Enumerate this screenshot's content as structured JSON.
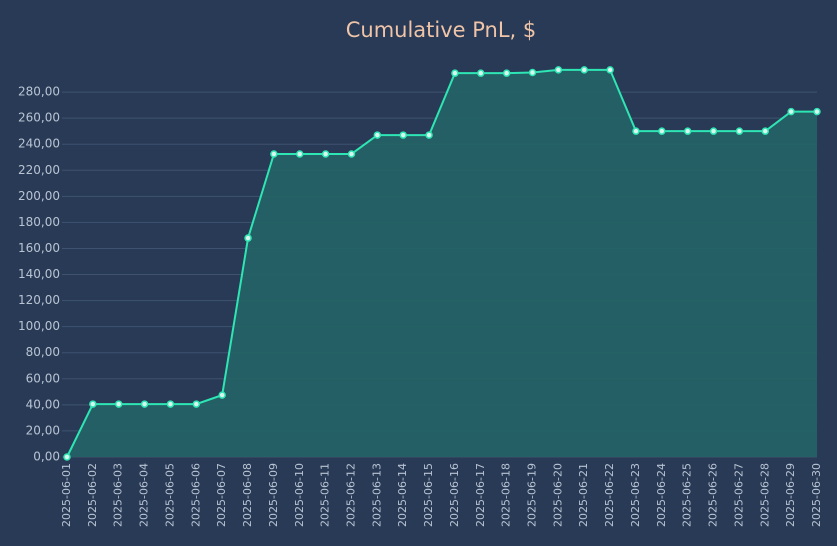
{
  "chart_data": {
    "type": "line",
    "title": "Cumulative PnL, $",
    "categories": [
      "2025-06-01",
      "2025-06-02",
      "2025-06-03",
      "2025-06-04",
      "2025-06-05",
      "2025-06-06",
      "2025-06-07",
      "2025-06-08",
      "2025-06-09",
      "2025-06-10",
      "2025-06-11",
      "2025-06-12",
      "2025-06-13",
      "2025-06-14",
      "2025-06-15",
      "2025-06-16",
      "2025-06-17",
      "2025-06-18",
      "2025-06-19",
      "2025-06-20",
      "2025-06-21",
      "2025-06-22",
      "2025-06-23",
      "2025-06-24",
      "2025-06-25",
      "2025-06-26",
      "2025-06-27",
      "2025-06-28",
      "2025-06-29",
      "2025-06-30"
    ],
    "values": [
      0,
      40.6,
      40.6,
      40.6,
      40.6,
      40.6,
      47.5,
      168,
      232.5,
      232.5,
      232.5,
      232.5,
      247,
      247,
      247,
      294.5,
      294.5,
      294.5,
      295,
      297,
      297,
      297,
      250,
      250,
      250,
      250,
      250,
      250,
      265,
      265
    ],
    "color": "#2ee6b4",
    "fill": "#226466",
    "ylim": [
      0,
      300
    ],
    "yticks": [
      {
        "value": 0,
        "label": "0,00"
      },
      {
        "value": 20,
        "label": "20,00"
      },
      {
        "value": 40,
        "label": "40,00"
      },
      {
        "value": 60,
        "label": "60,00"
      },
      {
        "value": 80,
        "label": "80,00"
      },
      {
        "value": 100,
        "label": "100,00"
      },
      {
        "value": 120,
        "label": "120,00"
      },
      {
        "value": 140,
        "label": "140,00"
      },
      {
        "value": 160,
        "label": "160,00"
      },
      {
        "value": 180,
        "label": "180,00"
      },
      {
        "value": 200,
        "label": "200,00"
      },
      {
        "value": 220,
        "label": "220,00"
      },
      {
        "value": 240,
        "label": "240,00"
      },
      {
        "value": 260,
        "label": "260,00"
      },
      {
        "value": 280,
        "label": "280,00"
      }
    ],
    "grid": true
  }
}
